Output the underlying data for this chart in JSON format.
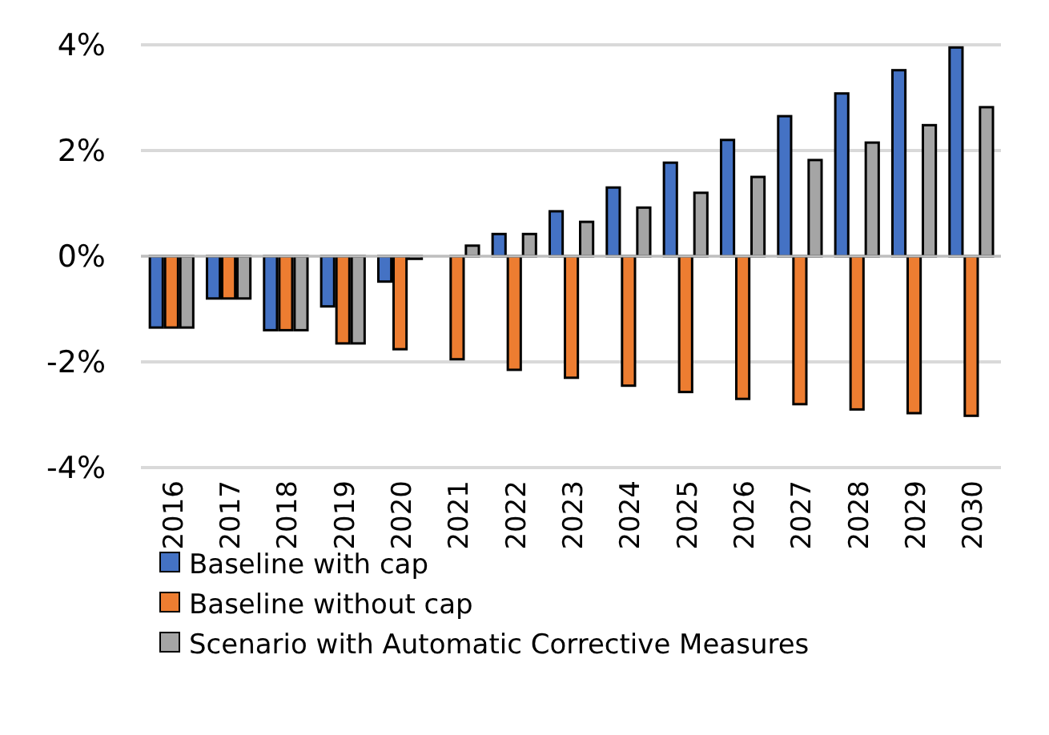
{
  "chart_data": {
    "type": "bar",
    "categories": [
      "2016",
      "2017",
      "2018",
      "2019",
      "2020",
      "2021",
      "2022",
      "2023",
      "2024",
      "2025",
      "2026",
      "2027",
      "2028",
      "2029",
      "2030"
    ],
    "series": [
      {
        "name": "Baseline with cap",
        "color": "#4472c4",
        "values": [
          -1.35,
          -0.8,
          -1.4,
          -0.95,
          -0.48,
          null,
          0.42,
          0.85,
          1.3,
          1.77,
          2.2,
          2.65,
          3.08,
          3.52,
          3.95
        ]
      },
      {
        "name": "Baseline without cap",
        "color": "#ed7d31",
        "values": [
          -1.35,
          -0.8,
          -1.4,
          -1.65,
          -1.76,
          -1.95,
          -2.15,
          -2.3,
          -2.45,
          -2.57,
          -2.7,
          -2.8,
          -2.9,
          -2.97,
          -3.02
        ]
      },
      {
        "name": "Scenario with Automatic Corrective Measures",
        "color": "#a5a5a5",
        "values": [
          -1.35,
          -0.8,
          -1.4,
          -1.65,
          -0.05,
          0.2,
          0.42,
          0.65,
          0.92,
          1.2,
          1.5,
          1.82,
          2.15,
          2.48,
          2.82
        ]
      }
    ],
    "ylim": [
      -4,
      4
    ],
    "yticks": [
      {
        "value": -4,
        "label": "-4%"
      },
      {
        "value": -2,
        "label": "-2%"
      },
      {
        "value": 0,
        "label": "0%"
      },
      {
        "value": 2,
        "label": "2%"
      },
      {
        "value": 4,
        "label": "4%"
      }
    ],
    "grid": "y",
    "legend": "bottom left"
  }
}
